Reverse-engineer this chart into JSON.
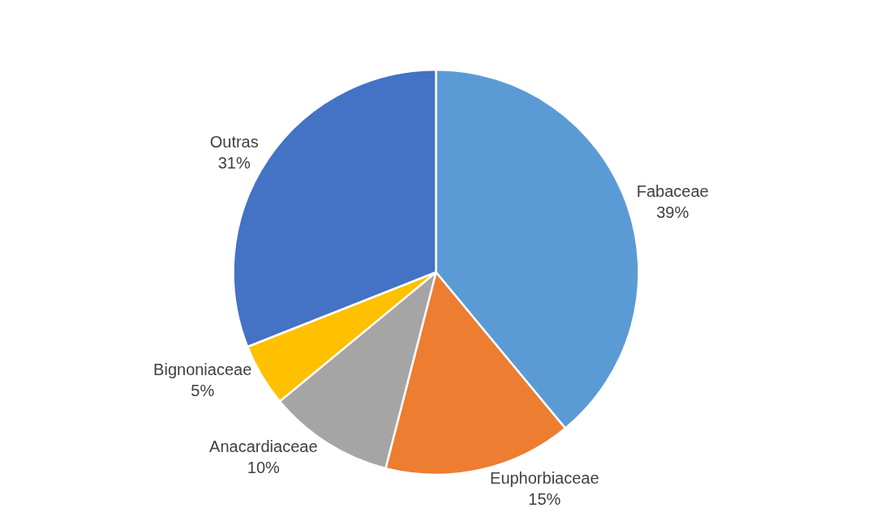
{
  "chart_data": {
    "type": "pie",
    "categories": [
      "Fabaceae",
      "Euphorbiaceae",
      "Anacardiaceae",
      "Bignoniaceae",
      "Outras"
    ],
    "values": [
      39,
      15,
      10,
      5,
      31
    ],
    "value_labels": [
      "39%",
      "15%",
      "10%",
      "5%",
      "31%"
    ],
    "colors": [
      "#5b9bd5",
      "#ed7d31",
      "#a5a5a5",
      "#ffc000",
      "#4472c4"
    ],
    "legend": false
  }
}
